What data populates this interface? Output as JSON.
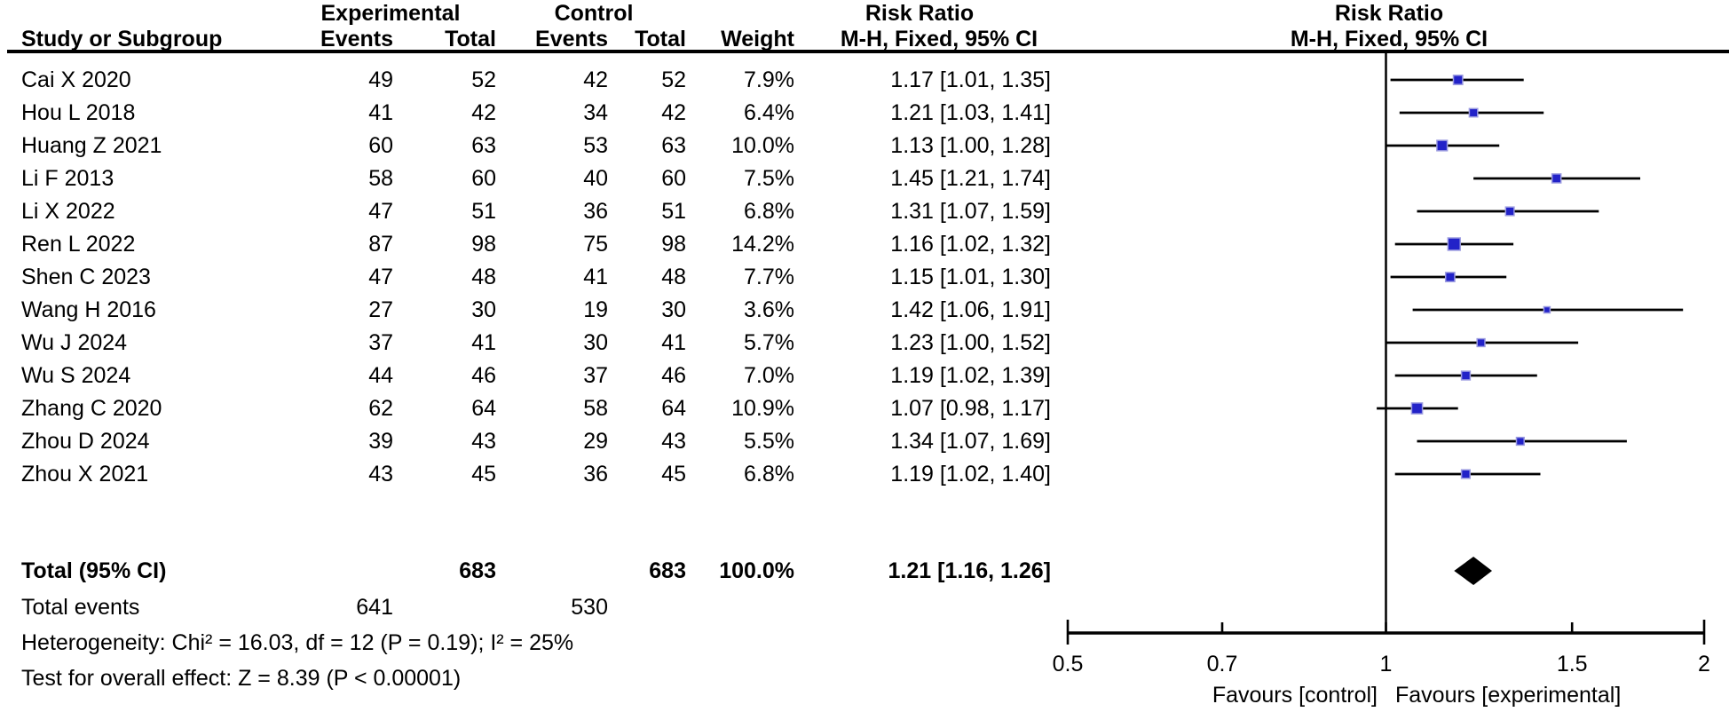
{
  "figure": {
    "header": {
      "group_experimental": "Experimental",
      "group_control": "Control",
      "study_col": "Study or Subgroup",
      "events_col": "Events",
      "total_col": "Total",
      "weight_col": "Weight",
      "risk_ratio": "Risk Ratio",
      "method_ci": "M-H, Fixed, 95% CI"
    },
    "total_row": {
      "label": "Total (95% CI)",
      "experimental_total": "683",
      "control_total": "683",
      "weight": "100.0%",
      "rr_ci": "1.21 [1.16, 1.26]"
    },
    "total_events_row": {
      "label": "Total events",
      "experimental_events": "641",
      "control_events": "530"
    },
    "heterogeneity": "Heterogeneity: Chi² = 16.03, df = 12 (P = 0.19); I² = 25%",
    "overall_effect": "Test for overall effect: Z = 8.39 (P < 0.00001)"
  },
  "studies": [
    {
      "label": "Cai X 2020",
      "experimental_events": "49",
      "experimental_total": "52",
      "control_events": "42",
      "control_total": "52",
      "weight": "7.9%",
      "rr_ci": "1.17 [1.01, 1.35]"
    },
    {
      "label": "Hou L 2018",
      "experimental_events": "41",
      "experimental_total": "42",
      "control_events": "34",
      "control_total": "42",
      "weight": "6.4%",
      "rr_ci": "1.21 [1.03, 1.41]"
    },
    {
      "label": "Huang Z 2021",
      "experimental_events": "60",
      "experimental_total": "63",
      "control_events": "53",
      "control_total": "63",
      "weight": "10.0%",
      "rr_ci": "1.13 [1.00, 1.28]"
    },
    {
      "label": "Li F 2013",
      "experimental_events": "58",
      "experimental_total": "60",
      "control_events": "40",
      "control_total": "60",
      "weight": "7.5%",
      "rr_ci": "1.45 [1.21, 1.74]"
    },
    {
      "label": "Li X 2022",
      "experimental_events": "47",
      "experimental_total": "51",
      "control_events": "36",
      "control_total": "51",
      "weight": "6.8%",
      "rr_ci": "1.31 [1.07, 1.59]"
    },
    {
      "label": "Ren L 2022",
      "experimental_events": "87",
      "experimental_total": "98",
      "control_events": "75",
      "control_total": "98",
      "weight": "14.2%",
      "rr_ci": "1.16 [1.02, 1.32]"
    },
    {
      "label": "Shen C 2023",
      "experimental_events": "47",
      "experimental_total": "48",
      "control_events": "41",
      "control_total": "48",
      "weight": "7.7%",
      "rr_ci": "1.15 [1.01, 1.30]"
    },
    {
      "label": "Wang H 2016",
      "experimental_events": "27",
      "experimental_total": "30",
      "control_events": "19",
      "control_total": "30",
      "weight": "3.6%",
      "rr_ci": "1.42 [1.06, 1.91]"
    },
    {
      "label": "Wu J 2024",
      "experimental_events": "37",
      "experimental_total": "41",
      "control_events": "30",
      "control_total": "41",
      "weight": "5.7%",
      "rr_ci": "1.23 [1.00, 1.52]"
    },
    {
      "label": "Wu S 2024",
      "experimental_events": "44",
      "experimental_total": "46",
      "control_events": "37",
      "control_total": "46",
      "weight": "7.0%",
      "rr_ci": "1.19 [1.02, 1.39]"
    },
    {
      "label": "Zhang C 2020",
      "experimental_events": "62",
      "experimental_total": "64",
      "control_events": "58",
      "control_total": "64",
      "weight": "10.9%",
      "rr_ci": "1.07 [0.98, 1.17]"
    },
    {
      "label": "Zhou D 2024",
      "experimental_events": "39",
      "experimental_total": "43",
      "control_events": "29",
      "control_total": "43",
      "weight": "5.5%",
      "rr_ci": "1.34 [1.07, 1.69]"
    },
    {
      "label": "Zhou X 2021",
      "experimental_events": "43",
      "experimental_total": "45",
      "control_events": "36",
      "control_total": "45",
      "weight": "6.8%",
      "rr_ci": "1.19 [1.02, 1.40]"
    }
  ],
  "chart_data": {
    "type": "forest",
    "effect_measure": "Risk Ratio",
    "method": "M-H, Fixed, 95% CI",
    "x_scale": "log",
    "axis_range": [
      0.5,
      2
    ],
    "axis_ticks": [
      {
        "value": 0.5,
        "label": "0.5"
      },
      {
        "value": 0.7,
        "label": "0.7"
      },
      {
        "value": 1,
        "label": "1"
      },
      {
        "value": 1.5,
        "label": "1.5"
      },
      {
        "value": 2,
        "label": "2"
      }
    ],
    "null_value": 1,
    "favours_left": "Favours [control]",
    "favours_right": "Favours [experimental]",
    "marker_color": "#2222C8",
    "marker_edge_color": "#9B9BE0",
    "line_color": "#000000",
    "points": [
      {
        "label": "Cai X 2020",
        "rr": 1.17,
        "ci_low": 1.01,
        "ci_high": 1.35,
        "weight_pct": 7.9
      },
      {
        "label": "Hou L 2018",
        "rr": 1.21,
        "ci_low": 1.03,
        "ci_high": 1.41,
        "weight_pct": 6.4
      },
      {
        "label": "Huang Z 2021",
        "rr": 1.13,
        "ci_low": 1.0,
        "ci_high": 1.28,
        "weight_pct": 10.0
      },
      {
        "label": "Li F 2013",
        "rr": 1.45,
        "ci_low": 1.21,
        "ci_high": 1.74,
        "weight_pct": 7.5
      },
      {
        "label": "Li X 2022",
        "rr": 1.31,
        "ci_low": 1.07,
        "ci_high": 1.59,
        "weight_pct": 6.8
      },
      {
        "label": "Ren L 2022",
        "rr": 1.16,
        "ci_low": 1.02,
        "ci_high": 1.32,
        "weight_pct": 14.2
      },
      {
        "label": "Shen C 2023",
        "rr": 1.15,
        "ci_low": 1.01,
        "ci_high": 1.3,
        "weight_pct": 7.7
      },
      {
        "label": "Wang H 2016",
        "rr": 1.42,
        "ci_low": 1.06,
        "ci_high": 1.91,
        "weight_pct": 3.6
      },
      {
        "label": "Wu J 2024",
        "rr": 1.23,
        "ci_low": 1.0,
        "ci_high": 1.52,
        "weight_pct": 5.7
      },
      {
        "label": "Wu S 2024",
        "rr": 1.19,
        "ci_low": 1.02,
        "ci_high": 1.39,
        "weight_pct": 7.0
      },
      {
        "label": "Zhang C 2020",
        "rr": 1.07,
        "ci_low": 0.98,
        "ci_high": 1.17,
        "weight_pct": 10.9
      },
      {
        "label": "Zhou D 2024",
        "rr": 1.34,
        "ci_low": 1.07,
        "ci_high": 1.69,
        "weight_pct": 5.5
      },
      {
        "label": "Zhou X 2021",
        "rr": 1.19,
        "ci_low": 1.02,
        "ci_high": 1.4,
        "weight_pct": 6.8
      }
    ],
    "summary": {
      "label": "Total (95% CI)",
      "rr": 1.21,
      "ci_low": 1.16,
      "ci_high": 1.26,
      "shape": "diamond",
      "color": "#000000"
    }
  }
}
